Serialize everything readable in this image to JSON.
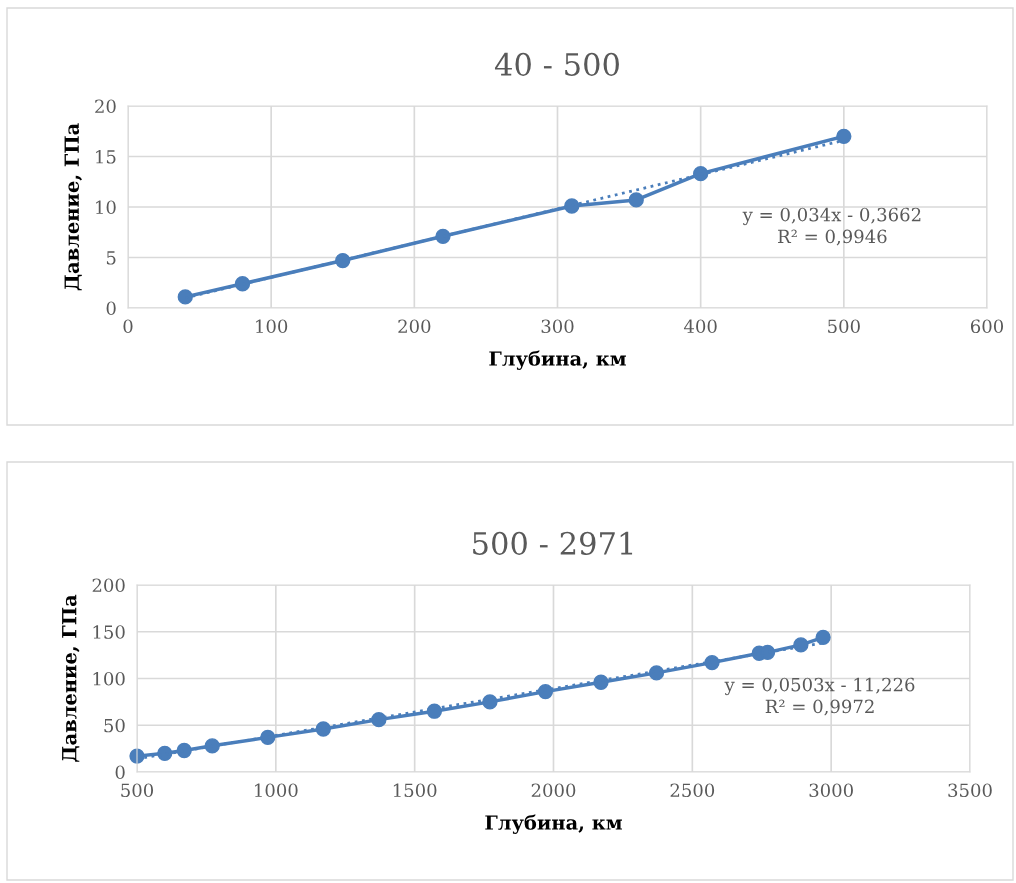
{
  "chart_data": [
    {
      "type": "line",
      "title": "40 - 500",
      "xlabel": "Глубина, км",
      "ylabel": "Давление, ГПа",
      "xlim": [
        0,
        600
      ],
      "xticks": [
        0,
        100,
        200,
        300,
        400,
        500,
        600
      ],
      "ylim": [
        0,
        20
      ],
      "yticks": [
        0,
        5,
        10,
        15,
        20
      ],
      "grid": true,
      "legend": false,
      "marker": "circle",
      "line_style": "solid",
      "series": [
        {
          "color": "#4a7ebb",
          "x": [
            40,
            80,
            150,
            220,
            310,
            355,
            400,
            500
          ],
          "values": [
            1.1,
            2.4,
            4.7,
            7.1,
            10.1,
            10.7,
            13.3,
            17.0
          ]
        },
        {
          "color": "#4a7ebb",
          "marker": "none",
          "line_style": "dotted",
          "x": [
            40,
            500
          ],
          "values": [
            1.0,
            16.6
          ]
        }
      ],
      "annotations": [
        "y = 0,034x - 0,3662\nR² = 0,9946"
      ]
    },
    {
      "type": "line",
      "title": "500 - 2971",
      "xlabel": "Глубина, км",
      "ylabel": "Давление, ГПа",
      "xlim": [
        500,
        3500
      ],
      "xticks": [
        500,
        1000,
        1500,
        2000,
        2500,
        3000,
        3500
      ],
      "ylim": [
        0,
        200
      ],
      "yticks": [
        0,
        50,
        100,
        150,
        200
      ],
      "grid": true,
      "legend": false,
      "marker": "circle",
      "line_style": "solid",
      "series": [
        {
          "color": "#4a7ebb",
          "x": [
            500,
            600,
            670,
            771,
            971,
            1171,
            1371,
            1571,
            1771,
            1971,
            2171,
            2371,
            2571,
            2741,
            2771,
            2891,
            2971
          ],
          "values": [
            17,
            20,
            23,
            28,
            37,
            46,
            56,
            65,
            75,
            86,
            96,
            106,
            117,
            127,
            128,
            136,
            144
          ]
        },
        {
          "color": "#4a7ebb",
          "marker": "none",
          "line_style": "dotted",
          "x": [
            500,
            2971
          ],
          "values": [
            14,
            138
          ]
        }
      ],
      "annotations": [
        "y = 0,0503x - 11,226\nR² = 0,9972"
      ]
    }
  ]
}
